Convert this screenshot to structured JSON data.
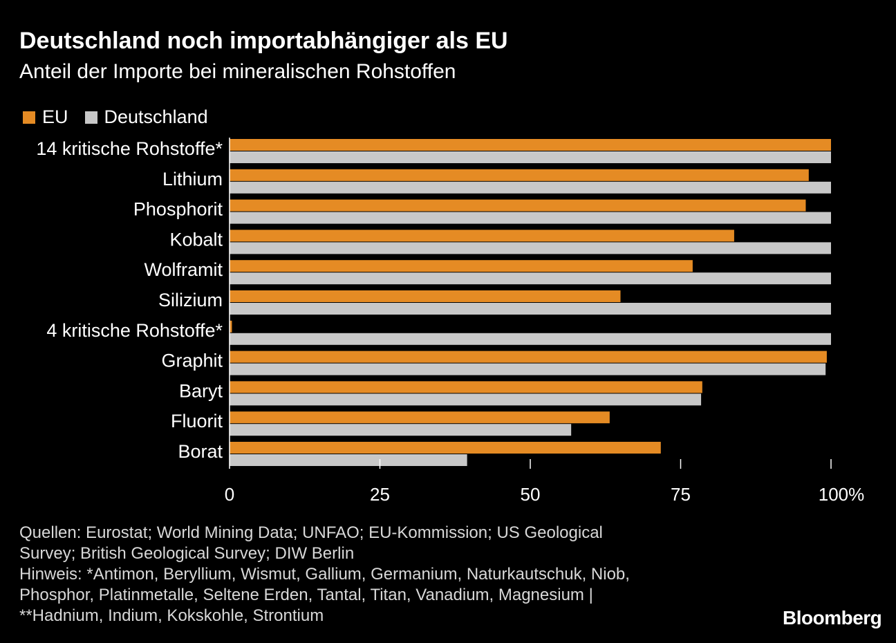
{
  "header": {
    "title": "Deutschland noch importabhängiger als EU",
    "subtitle": "Anteil der Importe bei mineralischen Rohstoffen"
  },
  "colors": {
    "eu": "#e58b24",
    "deutschland": "#c8c8c8",
    "background": "#000000",
    "text": "#ffffff",
    "axis": "#ffffff"
  },
  "chart_data": {
    "type": "bar",
    "orientation": "horizontal",
    "categories": [
      "14 kritische Rohstoffe*",
      "Lithium",
      "Phosphorit",
      "Kobalt",
      "Wolframit",
      "Silizium",
      "4 kritische Rohstoffe*",
      "Graphit",
      "Baryt",
      "Fluorit",
      "Borat"
    ],
    "series": [
      {
        "name": "EU",
        "color": "#e58b24",
        "values": [
          100,
          96.3,
          95.8,
          83.9,
          77,
          65,
          0.4,
          99.3,
          78.6,
          63.2,
          71.7
        ]
      },
      {
        "name": "Deutschland",
        "color": "#c8c8c8",
        "values": [
          100,
          100,
          100,
          100,
          100,
          100,
          100,
          99.1,
          78.4,
          56.8,
          39.5
        ]
      }
    ],
    "xlim": [
      0,
      100
    ],
    "xticks": [
      "0",
      "25",
      "50",
      "75",
      "100%"
    ],
    "xtick_values": [
      0,
      25,
      50,
      75,
      100
    ],
    "legend": "top-left",
    "grid": false
  },
  "footer": {
    "lines": [
      "Quellen: Eurostat; World Mining Data; UNFAO; EU-Kommission; US Geological",
      "Survey; British Geological Survey; DIW Berlin",
      "Hinweis: *Antimon, Beryllium, Wismut, Gallium, Germanium, Naturkautschuk, Niob,",
      "Phosphor, Platinmetalle, Seltene Erden, Tantal, Titan, Vanadium, Magnesium |",
      "**Hadnium, Indium, Kokskohle, Strontium"
    ],
    "logo": "Bloomberg"
  }
}
